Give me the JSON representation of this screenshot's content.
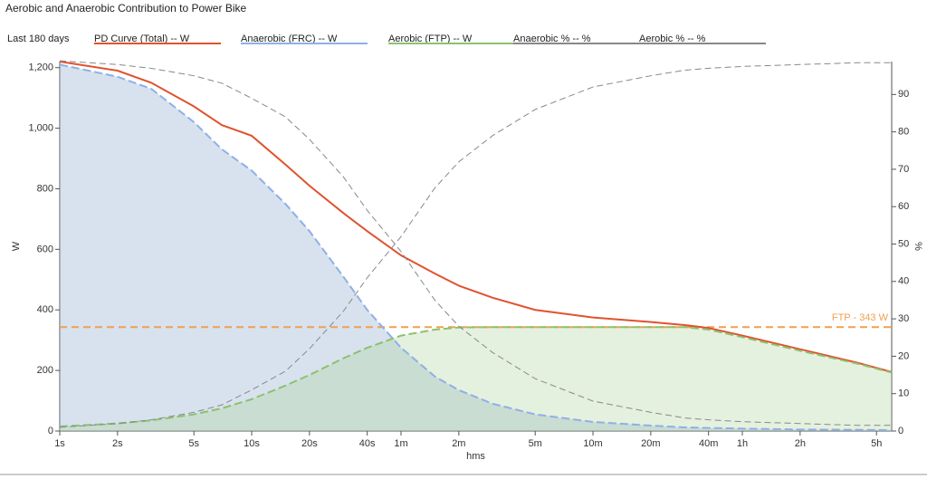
{
  "chart_data": {
    "type": "line",
    "title": "Aerobic and Anaerobic Contribution to Power Bike",
    "period": "Last 180 days",
    "xlabel": "hms",
    "ylabel": "W",
    "y2label": "%",
    "xscale": "log",
    "xlim": [
      1,
      21600
    ],
    "xticks": [
      {
        "value": 1,
        "label": "1s"
      },
      {
        "value": 2,
        "label": "2s"
      },
      {
        "value": 5,
        "label": "5s"
      },
      {
        "value": 10,
        "label": "10s"
      },
      {
        "value": 20,
        "label": "20s"
      },
      {
        "value": 40,
        "label": "40s"
      },
      {
        "value": 60,
        "label": "1m"
      },
      {
        "value": 120,
        "label": "2m"
      },
      {
        "value": 300,
        "label": "5m"
      },
      {
        "value": 600,
        "label": "10m"
      },
      {
        "value": 1200,
        "label": "20m"
      },
      {
        "value": 2400,
        "label": "40m"
      },
      {
        "value": 3600,
        "label": "1h"
      },
      {
        "value": 7200,
        "label": "2h"
      },
      {
        "value": 18000,
        "label": "5h"
      }
    ],
    "ylim": [
      0,
      1220
    ],
    "yticks": [
      0,
      200,
      400,
      600,
      800,
      {
        "value": 1000,
        "label": "1,000"
      },
      {
        "value": 1200,
        "label": "1,200"
      }
    ],
    "y2lim": [
      0,
      98.8
    ],
    "y2ticks": [
      0,
      10,
      20,
      30,
      40,
      50,
      60,
      70,
      80,
      90
    ],
    "x": [
      1,
      2,
      3,
      5,
      7,
      10,
      15,
      20,
      30,
      40,
      60,
      90,
      120,
      180,
      300,
      600,
      1200,
      1800,
      2400,
      3600,
      7200,
      14400,
      21600
    ],
    "series": [
      {
        "name": "PD Curve (Total)  -- W",
        "color": "#e0522f",
        "dash": false,
        "area": false,
        "values": [
          1220,
          1190,
          1150,
          1072,
          1010,
          975,
          880,
          810,
          720,
          660,
          580,
          520,
          480,
          440,
          400,
          375,
          360,
          350,
          340,
          315,
          270,
          225,
          195
        ]
      },
      {
        "name": "Anaerobic (FRC)  -- W",
        "color": "#8fb0e6",
        "dash": true,
        "area": true,
        "fill": "rgba(160,185,215,0.42)",
        "values": [
          1210,
          1170,
          1130,
          1020,
          930,
          860,
          750,
          660,
          510,
          400,
          275,
          180,
          135,
          90,
          55,
          30,
          18,
          12,
          10,
          8,
          5,
          4,
          3
        ]
      },
      {
        "name": "Aerobic (FTP)  -- W",
        "color": "#8dc16e",
        "dash": true,
        "area": true,
        "fill": "rgba(170,210,150,0.30)",
        "values": [
          15,
          25,
          35,
          55,
          75,
          105,
          150,
          185,
          240,
          275,
          315,
          335,
          342,
          343,
          343,
          343,
          343,
          343,
          335,
          310,
          265,
          222,
          193
        ]
      },
      {
        "name": "Anaerobic %  -- %",
        "color": "#888888",
        "dash": true,
        "area": false,
        "axis": "y2",
        "values": [
          99,
          98,
          97,
          95,
          93,
          89,
          84,
          78,
          68,
          59,
          48,
          35,
          28,
          21,
          14,
          8,
          5,
          3.5,
          3,
          2.5,
          2,
          1.5,
          1.5
        ]
      },
      {
        "name": "Aerobic %  -- %",
        "color": "#888888",
        "dash": true,
        "area": false,
        "axis": "y2",
        "values": [
          1,
          2,
          3,
          5,
          7,
          11,
          16,
          22,
          32,
          41,
          52,
          65,
          72,
          79,
          86,
          92,
          95,
          96.5,
          97,
          97.5,
          98,
          98.5,
          98.5
        ]
      }
    ],
    "ftp": {
      "label": "FTP - 343 W",
      "value": 343,
      "color": "#f0a050"
    }
  }
}
